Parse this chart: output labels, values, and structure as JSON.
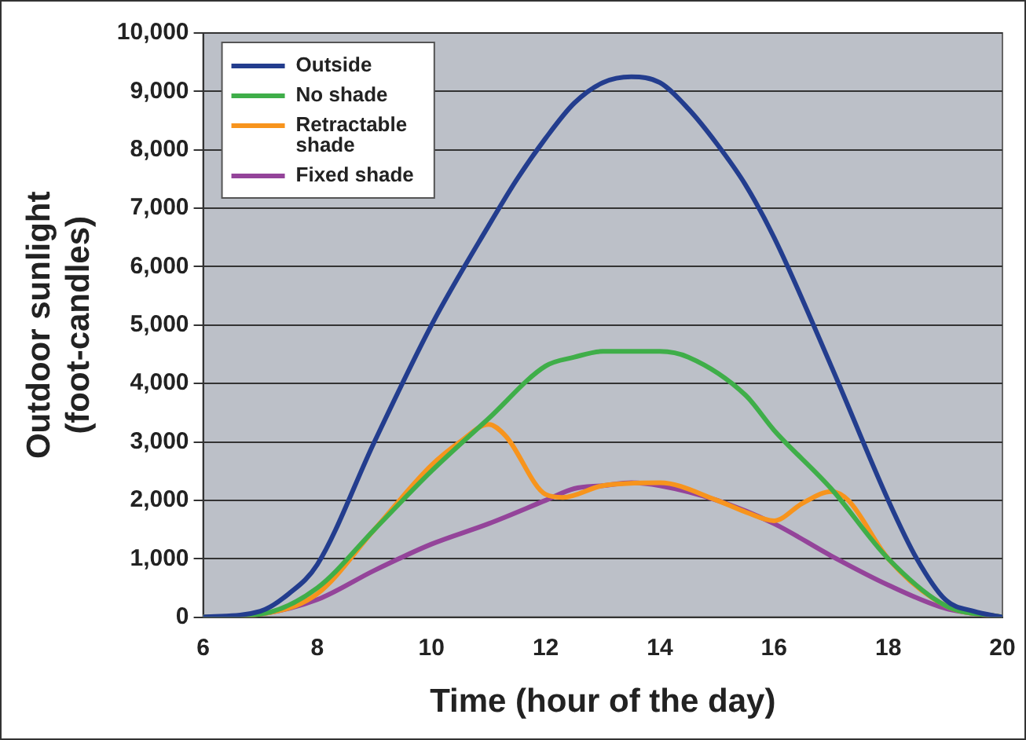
{
  "chart_data": {
    "type": "line",
    "xlabel": "Time (hour of the day)",
    "ylabel": "Outdoor sunlight\n(foot-candles)",
    "xlim": [
      6,
      20
    ],
    "xticks": [
      6,
      8,
      10,
      12,
      14,
      16,
      18,
      20
    ],
    "ylim": [
      0,
      10000
    ],
    "yticks": [
      0,
      {
        "value": 1000,
        "label": "1,000"
      },
      {
        "value": 2000,
        "label": "2,000"
      },
      {
        "value": 3000,
        "label": "3,000"
      },
      {
        "value": 4000,
        "label": "4,000"
      },
      {
        "value": 5000,
        "label": "5,000"
      },
      {
        "value": 6000,
        "label": "6,000"
      },
      {
        "value": 7000,
        "label": "7,000"
      },
      {
        "value": 8000,
        "label": "8,000"
      },
      {
        "value": 9000,
        "label": "9,000"
      },
      {
        "value": 10000,
        "label": "10,000"
      }
    ],
    "grid": "y",
    "legend": "top left",
    "marker": "none",
    "line_style": "solid",
    "series": [
      {
        "name": "Outside",
        "color": "#233d8e",
        "x": [
          6,
          7,
          7.5,
          8,
          9,
          10,
          11,
          11.5,
          12,
          12.5,
          13,
          13.5,
          14,
          14.5,
          15,
          15.5,
          16,
          17,
          18,
          18.5,
          19,
          19.5,
          20
        ],
        "values": [
          0,
          100,
          400,
          900,
          3000,
          5000,
          6700,
          7500,
          8200,
          8800,
          9150,
          9250,
          9150,
          8700,
          8100,
          7400,
          6500,
          4300,
          2000,
          1000,
          300,
          100,
          0
        ]
      },
      {
        "name": "No shade",
        "color": "#3fae49",
        "x": [
          6,
          7,
          8,
          9,
          10,
          11,
          12,
          12.5,
          13,
          14,
          14.5,
          15.5,
          16,
          17,
          18,
          19,
          20
        ],
        "values": [
          0,
          50,
          500,
          1500,
          2500,
          3400,
          4300,
          4450,
          4550,
          4550,
          4450,
          3800,
          3200,
          2200,
          1000,
          200,
          0
        ]
      },
      {
        "name": "Retractable\nshade",
        "color": "#f7941d",
        "x": [
          6,
          7,
          8,
          9,
          10,
          10.5,
          11,
          11.3,
          12,
          12.3,
          13,
          14,
          15,
          15.5,
          16,
          16.5,
          17,
          17.3,
          18,
          19,
          20
        ],
        "values": [
          0,
          50,
          400,
          1500,
          2600,
          3000,
          3300,
          3100,
          2100,
          2050,
          2250,
          2300,
          2000,
          1800,
          1650,
          1950,
          2150,
          2000,
          1000,
          200,
          0
        ]
      },
      {
        "name": "Fixed shade",
        "color": "#94449a",
        "x": [
          6,
          7,
          8,
          9,
          10,
          11,
          12,
          12.5,
          13,
          13.5,
          14,
          15,
          16,
          17,
          18,
          19,
          20
        ],
        "values": [
          0,
          50,
          300,
          800,
          1250,
          1600,
          2000,
          2200,
          2250,
          2300,
          2250,
          2000,
          1600,
          1050,
          550,
          150,
          0
        ]
      }
    ]
  }
}
